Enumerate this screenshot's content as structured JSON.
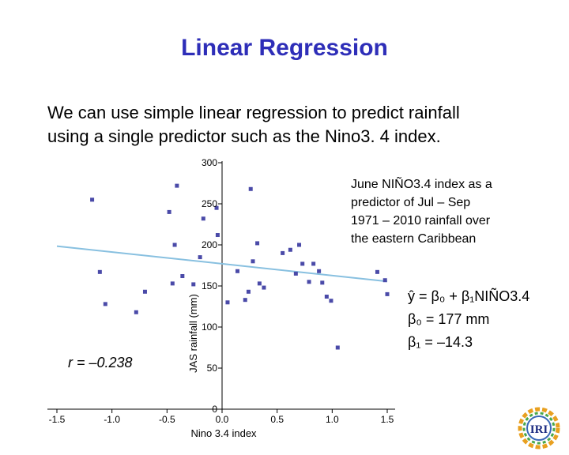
{
  "slide": {
    "title": "Linear Regression",
    "body_lines": [
      "We can use simple linear regression to predict rainfall",
      "using a single predictor such as the Nino3. 4 index."
    ],
    "description_lines": [
      "June NIÑO3.4 index as a",
      "predictor of Jul – Sep",
      "1971 – 2010  rainfall over",
      "the eastern Caribbean"
    ],
    "logo_text": "IRI"
  },
  "chart_data": {
    "type": "scatter",
    "xlabel": "Nino 3.4 index",
    "ylabel": "JAS rainfall (mm)",
    "xlim": [
      -1.5,
      1.5
    ],
    "ylim": [
      0,
      300
    ],
    "x_ticks": [
      -1.5,
      -1.0,
      -0.5,
      0.0,
      0.5,
      1.0,
      1.5
    ],
    "x_tick_labels": [
      "-1.5",
      "-1.0",
      "-0.5",
      "0.0",
      "0.5",
      "1.0",
      "1.5"
    ],
    "y_ticks": [
      0,
      50,
      100,
      150,
      200,
      250,
      300
    ],
    "y_tick_labels": [
      "0",
      "50",
      "100",
      "150",
      "200",
      "250",
      "300"
    ],
    "grid": false,
    "points": [
      {
        "x": -1.18,
        "y": 255
      },
      {
        "x": -1.11,
        "y": 167
      },
      {
        "x": -1.06,
        "y": 128
      },
      {
        "x": -0.78,
        "y": 118
      },
      {
        "x": -0.7,
        "y": 143
      },
      {
        "x": -0.48,
        "y": 240
      },
      {
        "x": -0.45,
        "y": 153
      },
      {
        "x": -0.43,
        "y": 200
      },
      {
        "x": -0.41,
        "y": 272
      },
      {
        "x": -0.36,
        "y": 162
      },
      {
        "x": -0.26,
        "y": 152
      },
      {
        "x": -0.2,
        "y": 185
      },
      {
        "x": -0.17,
        "y": 232
      },
      {
        "x": -0.05,
        "y": 245
      },
      {
        "x": -0.04,
        "y": 212
      },
      {
        "x": 0.05,
        "y": 130
      },
      {
        "x": 0.14,
        "y": 168
      },
      {
        "x": 0.21,
        "y": 133
      },
      {
        "x": 0.24,
        "y": 143
      },
      {
        "x": 0.26,
        "y": 268
      },
      {
        "x": 0.28,
        "y": 180
      },
      {
        "x": 0.32,
        "y": 202
      },
      {
        "x": 0.34,
        "y": 153
      },
      {
        "x": 0.38,
        "y": 148
      },
      {
        "x": 0.55,
        "y": 190
      },
      {
        "x": 0.62,
        "y": 194
      },
      {
        "x": 0.67,
        "y": 165
      },
      {
        "x": 0.7,
        "y": 200
      },
      {
        "x": 0.73,
        "y": 177
      },
      {
        "x": 0.79,
        "y": 155
      },
      {
        "x": 0.83,
        "y": 177
      },
      {
        "x": 0.88,
        "y": 168
      },
      {
        "x": 0.91,
        "y": 154
      },
      {
        "x": 0.95,
        "y": 137
      },
      {
        "x": 0.99,
        "y": 132
      },
      {
        "x": 1.05,
        "y": 75
      },
      {
        "x": 1.41,
        "y": 167
      },
      {
        "x": 1.48,
        "y": 157
      },
      {
        "x": 1.5,
        "y": 140
      }
    ],
    "regression_line": {
      "intercept": 177,
      "slope": -14.3,
      "x_range": [
        -1.5,
        1.5
      ]
    },
    "equation_lines": [
      "ŷ = β₀ + β₁NIÑO3.4",
      "β₀ = 177 mm",
      "β₁ = –14.3"
    ],
    "correlation_label": "r = –0.238",
    "colors": {
      "points": "#4a4aa8",
      "line": "#88c0e0",
      "axis": "#000000"
    }
  }
}
